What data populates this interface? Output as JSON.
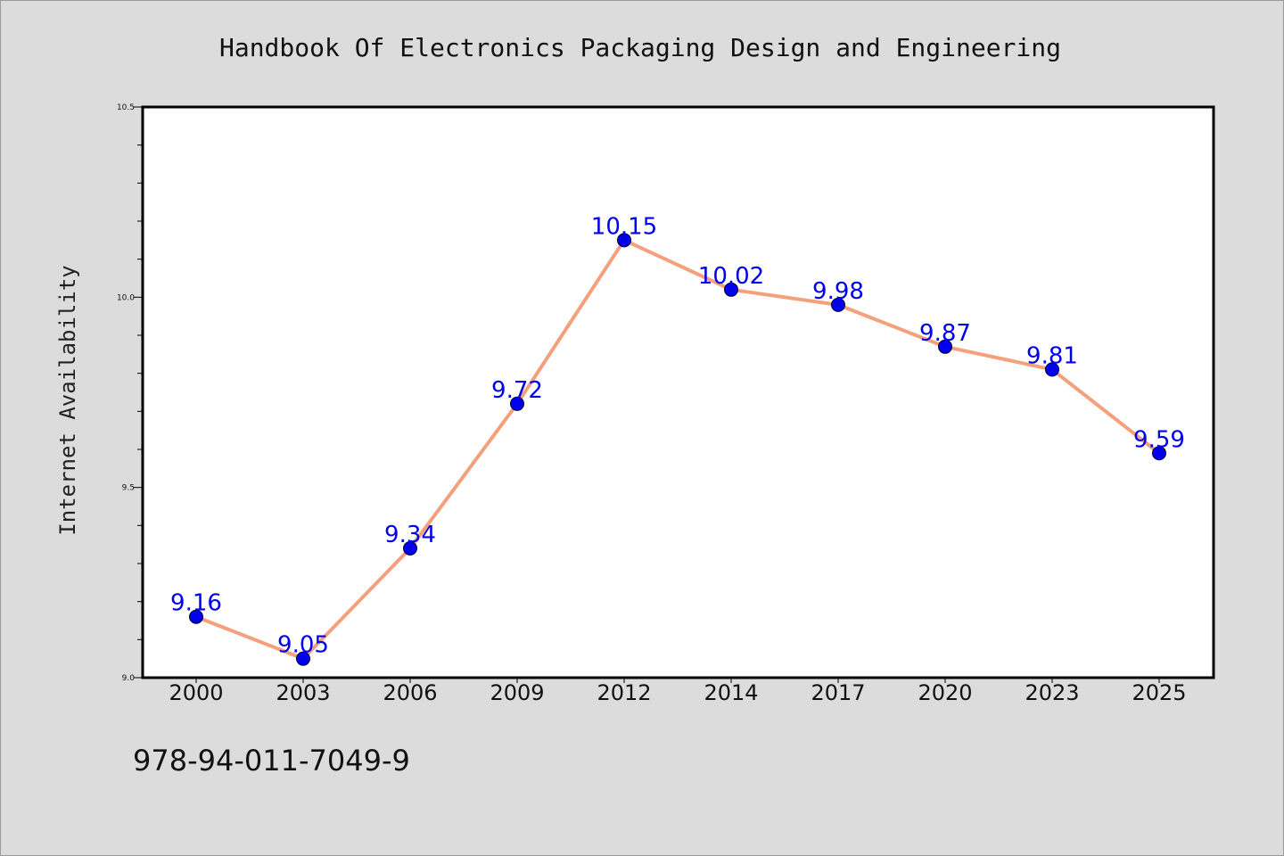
{
  "chart_data": {
    "type": "line",
    "title": "Handbook Of Electronics Packaging Design and Engineering",
    "ylabel": "Internet Availability",
    "xlabel": "",
    "categories": [
      "2000",
      "2003",
      "2006",
      "2009",
      "2012",
      "2014",
      "2017",
      "2020",
      "2023",
      "2025"
    ],
    "series": [
      {
        "values": [
          9.16,
          9.05,
          9.34,
          9.72,
          10.15,
          10.02,
          9.98,
          9.87,
          9.81,
          9.59
        ],
        "data_labels": [
          "9.16",
          "9.05",
          "9.34",
          "9.72",
          "10.15",
          "10.02",
          "9.98",
          "9.87",
          "9.81",
          "9.59"
        ]
      }
    ],
    "ylim": [
      9.0,
      10.5
    ],
    "yticks": [
      "9.0",
      "9.5",
      "10.0",
      "10.5"
    ],
    "grid": false,
    "colors": {
      "line": "#f4a07c",
      "marker": "#0000ee",
      "label": "#0000ee"
    }
  },
  "footer": {
    "isbn": "978-94-011-7049-9"
  }
}
